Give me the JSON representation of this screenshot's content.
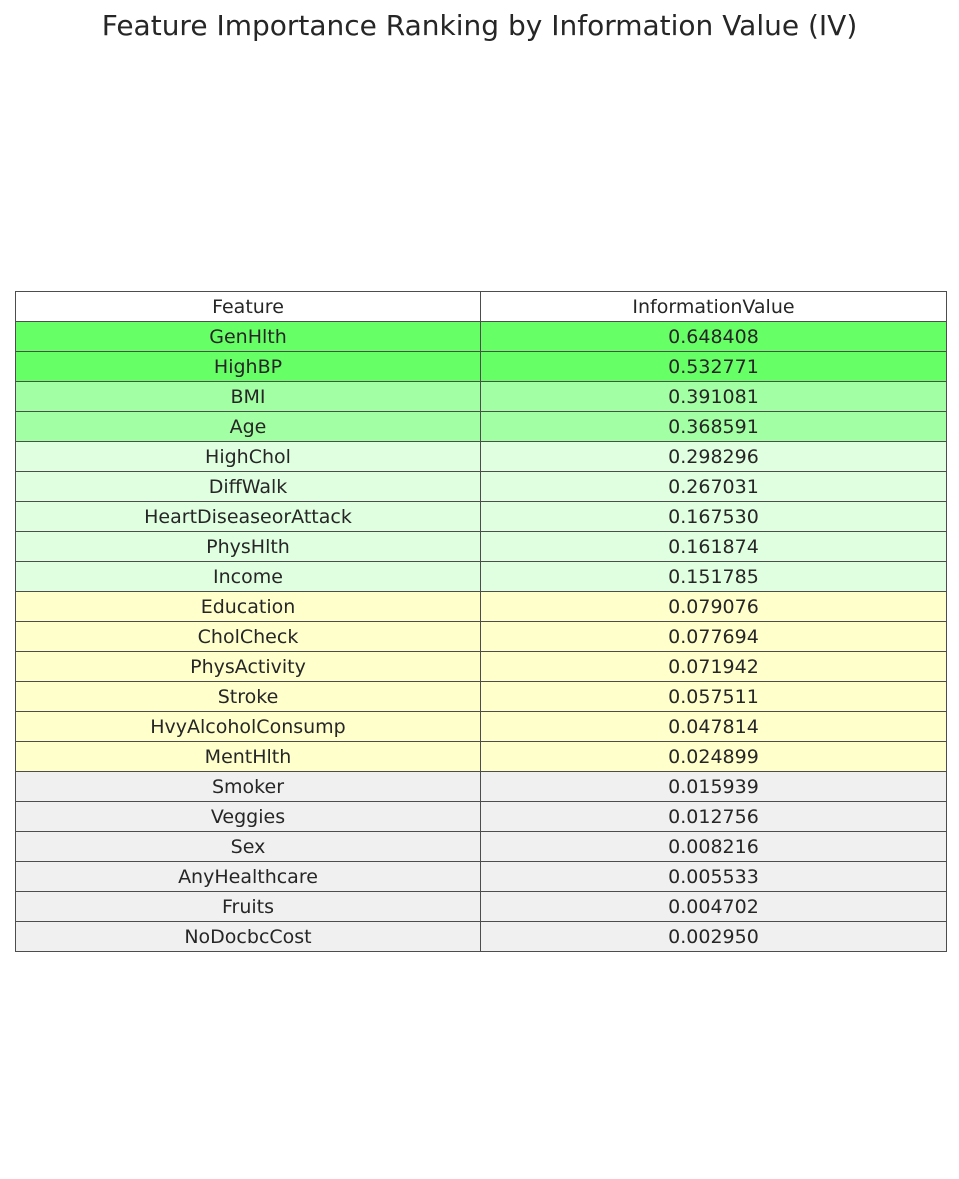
{
  "title": "Feature Importance Ranking by Information Value (IV)",
  "chart_data": {
    "type": "table",
    "title": "Feature Importance Ranking by Information Value (IV)",
    "columns": [
      "Feature",
      "InformationValue"
    ],
    "tier_colors": {
      "strong": "#66ff66",
      "medium": "#a3ffa3",
      "weak": "#e0ffe0",
      "very_weak": "#ffffcc",
      "useless": "#f0f0f0"
    },
    "rows": [
      {
        "feature": "GenHlth",
        "value": "0.648408",
        "tier": "strong"
      },
      {
        "feature": "HighBP",
        "value": "0.532771",
        "tier": "strong"
      },
      {
        "feature": "BMI",
        "value": "0.391081",
        "tier": "medium"
      },
      {
        "feature": "Age",
        "value": "0.368591",
        "tier": "medium"
      },
      {
        "feature": "HighChol",
        "value": "0.298296",
        "tier": "weak"
      },
      {
        "feature": "DiffWalk",
        "value": "0.267031",
        "tier": "weak"
      },
      {
        "feature": "HeartDiseaseorAttack",
        "value": "0.167530",
        "tier": "weak"
      },
      {
        "feature": "PhysHlth",
        "value": "0.161874",
        "tier": "weak"
      },
      {
        "feature": "Income",
        "value": "0.151785",
        "tier": "weak"
      },
      {
        "feature": "Education",
        "value": "0.079076",
        "tier": "very_weak"
      },
      {
        "feature": "CholCheck",
        "value": "0.077694",
        "tier": "very_weak"
      },
      {
        "feature": "PhysActivity",
        "value": "0.071942",
        "tier": "very_weak"
      },
      {
        "feature": "Stroke",
        "value": "0.057511",
        "tier": "very_weak"
      },
      {
        "feature": "HvyAlcoholConsump",
        "value": "0.047814",
        "tier": "very_weak"
      },
      {
        "feature": "MentHlth",
        "value": "0.024899",
        "tier": "very_weak"
      },
      {
        "feature": "Smoker",
        "value": "0.015939",
        "tier": "useless"
      },
      {
        "feature": "Veggies",
        "value": "0.012756",
        "tier": "useless"
      },
      {
        "feature": "Sex",
        "value": "0.008216",
        "tier": "useless"
      },
      {
        "feature": "AnyHealthcare",
        "value": "0.005533",
        "tier": "useless"
      },
      {
        "feature": "Fruits",
        "value": "0.004702",
        "tier": "useless"
      },
      {
        "feature": "NoDocbcCost",
        "value": "0.002950",
        "tier": "useless"
      }
    ]
  }
}
